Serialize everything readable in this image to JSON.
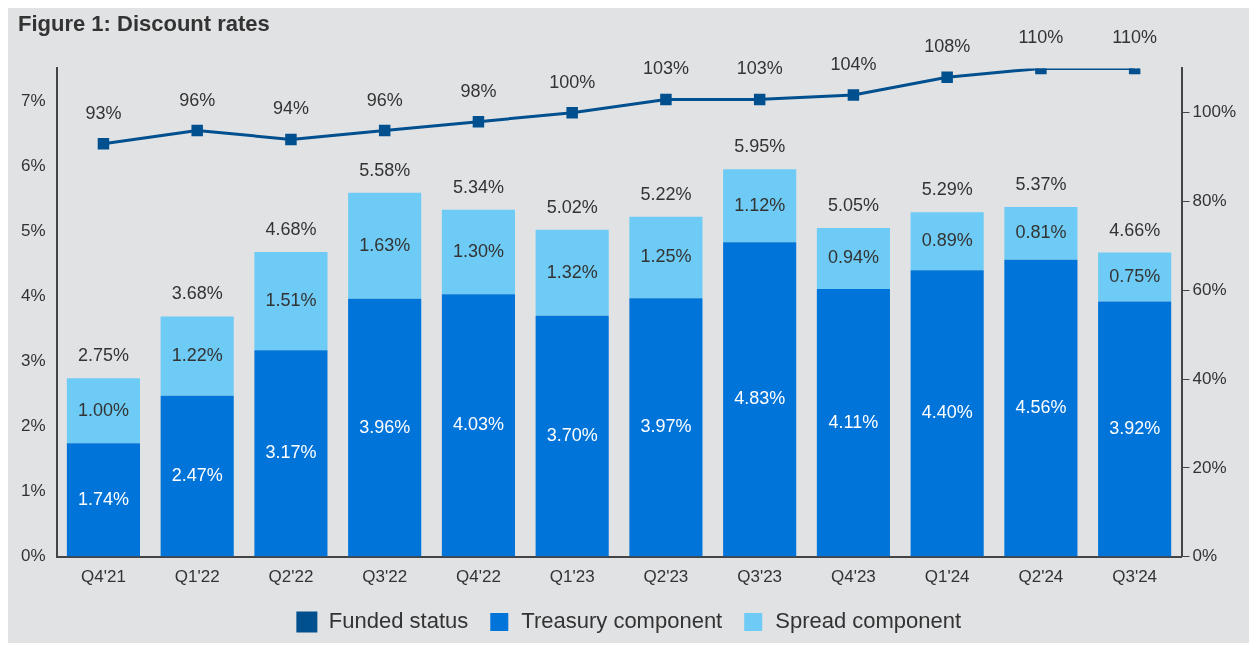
{
  "chart_data": {
    "type": "bar",
    "title": "Figure 1: Discount rates",
    "categories": [
      "Q4'21",
      "Q1'22",
      "Q2'22",
      "Q3'22",
      "Q4'22",
      "Q1'23",
      "Q2'23",
      "Q3'23",
      "Q4'23",
      "Q1'24",
      "Q2'24",
      "Q3'24"
    ],
    "stacked": true,
    "series": [
      {
        "name": "Treasury component",
        "color": "#0074d9",
        "values": [
          1.74,
          2.47,
          3.17,
          3.96,
          4.03,
          3.7,
          3.97,
          4.83,
          4.11,
          4.4,
          4.56,
          3.92
        ],
        "value_labels": [
          "1.74%",
          "2.47%",
          "3.17%",
          "3.96%",
          "4.03%",
          "3.70%",
          "3.97%",
          "4.83%",
          "4.11%",
          "4.40%",
          "4.56%",
          "3.92%"
        ]
      },
      {
        "name": "Spread component",
        "color": "#6ecbf5",
        "values": [
          1.0,
          1.22,
          1.51,
          1.63,
          1.3,
          1.32,
          1.25,
          1.12,
          0.94,
          0.89,
          0.81,
          0.75
        ],
        "value_labels": [
          "1.00%",
          "1.22%",
          "1.51%",
          "1.63%",
          "1.30%",
          "1.32%",
          "1.25%",
          "1.12%",
          "0.94%",
          "0.89%",
          "0.81%",
          "0.75%"
        ]
      },
      {
        "name": "Funded status",
        "type": "line",
        "axis": "y2",
        "color": "#00508f",
        "values": [
          93,
          96,
          94,
          96,
          98,
          100,
          103,
          103,
          104,
          108,
          110,
          110
        ],
        "value_labels": [
          "93%",
          "96%",
          "94%",
          "96%",
          "98%",
          "100%",
          "103%",
          "103%",
          "104%",
          "108%",
          "110%",
          "110%"
        ]
      }
    ],
    "totals": [
      "2.75%",
      "3.68%",
      "4.68%",
      "5.58%",
      "5.34%",
      "5.02%",
      "5.22%",
      "5.95%",
      "5.05%",
      "5.29%",
      "5.37%",
      "4.66%"
    ],
    "ylim": [
      0,
      7.5
    ],
    "yticks": [
      {
        "value": 0,
        "label": "0%"
      },
      {
        "value": 1,
        "label": "1%"
      },
      {
        "value": 2,
        "label": "2%"
      },
      {
        "value": 3,
        "label": "3%"
      },
      {
        "value": 4,
        "label": "4%"
      },
      {
        "value": 5,
        "label": "5%"
      },
      {
        "value": 6,
        "label": "6%"
      },
      {
        "value": 7,
        "label": "7%"
      }
    ],
    "y2lim": [
      0,
      110
    ],
    "y2ticks": [
      {
        "value": 0,
        "label": "0%"
      },
      {
        "value": 20,
        "label": "20%"
      },
      {
        "value": 40,
        "label": "40%"
      },
      {
        "value": 60,
        "label": "60%"
      },
      {
        "value": 80,
        "label": "80%"
      },
      {
        "value": 100,
        "label": "100%"
      }
    ],
    "grid": false,
    "legend": "bottom",
    "marker": "square",
    "line_style": "solid"
  }
}
